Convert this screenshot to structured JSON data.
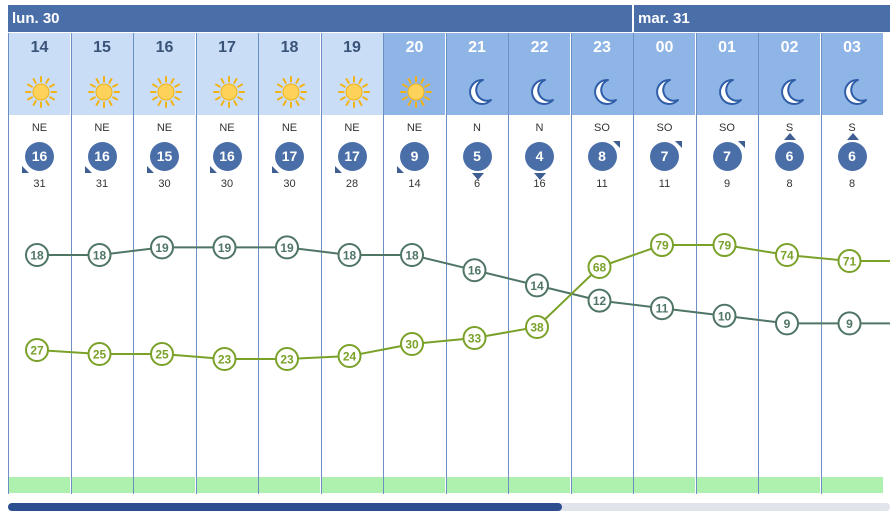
{
  "days": [
    {
      "label": "lun. 30"
    },
    {
      "label": "mar. 31"
    }
  ],
  "hours": [
    {
      "hour": "14",
      "icon": "sun-icon",
      "dir": "NE",
      "wind": "16",
      "gust": "31",
      "arrow": "down-left"
    },
    {
      "hour": "15",
      "icon": "sun-icon",
      "dir": "NE",
      "wind": "16",
      "gust": "31",
      "arrow": "down-left"
    },
    {
      "hour": "16",
      "icon": "sun-icon",
      "dir": "NE",
      "wind": "15",
      "gust": "30",
      "arrow": "down-left"
    },
    {
      "hour": "17",
      "icon": "sun-icon",
      "dir": "NE",
      "wind": "16",
      "gust": "30",
      "arrow": "down-left"
    },
    {
      "hour": "18",
      "icon": "sun-icon",
      "dir": "NE",
      "wind": "17",
      "gust": "30",
      "arrow": "down-left"
    },
    {
      "hour": "19",
      "icon": "sun-icon",
      "dir": "NE",
      "wind": "17",
      "gust": "28",
      "arrow": "down-left"
    },
    {
      "hour": "20",
      "icon": "sun-icon",
      "dir": "NE",
      "wind": "9",
      "gust": "14",
      "arrow": "down-left"
    },
    {
      "hour": "21",
      "icon": "moon-icon",
      "dir": "N",
      "wind": "5",
      "gust": "6",
      "arrow": "down"
    },
    {
      "hour": "22",
      "icon": "moon-icon",
      "dir": "N",
      "wind": "4",
      "gust": "16",
      "arrow": "down"
    },
    {
      "hour": "23",
      "icon": "moon-icon",
      "dir": "SO",
      "wind": "8",
      "gust": "11",
      "arrow": "up-right"
    },
    {
      "hour": "00",
      "icon": "moon-icon",
      "dir": "SO",
      "wind": "7",
      "gust": "11",
      "arrow": "up-right"
    },
    {
      "hour": "01",
      "icon": "moon-icon",
      "dir": "SO",
      "wind": "7",
      "gust": "9",
      "arrow": "up-right"
    },
    {
      "hour": "02",
      "icon": "moon-icon",
      "dir": "S",
      "wind": "6",
      "gust": "8",
      "arrow": "up"
    },
    {
      "hour": "03",
      "icon": "moon-icon",
      "dir": "S",
      "wind": "6",
      "gust": "8",
      "arrow": "up"
    }
  ],
  "chart_data": {
    "type": "line",
    "x": [
      "14",
      "15",
      "16",
      "17",
      "18",
      "19",
      "20",
      "21",
      "22",
      "23",
      "00",
      "01",
      "02",
      "03"
    ],
    "series": [
      {
        "values": [
          18,
          18,
          19,
          19,
          19,
          18,
          18,
          16,
          14,
          12,
          11,
          10,
          9,
          9
        ],
        "color": "#4f7565"
      },
      {
        "values": [
          27,
          25,
          25,
          23,
          23,
          24,
          30,
          33,
          38,
          68,
          79,
          79,
          74,
          71
        ],
        "color": "#7aa22a"
      }
    ]
  },
  "colors": {
    "header": "#4a6fa8",
    "day_background": "#c9ddf7",
    "night_background": "#8fb4e6",
    "wind_badge": "#4a6fa8",
    "band": "#aef0ae",
    "scroll_thumb": "#2e4f8f"
  }
}
